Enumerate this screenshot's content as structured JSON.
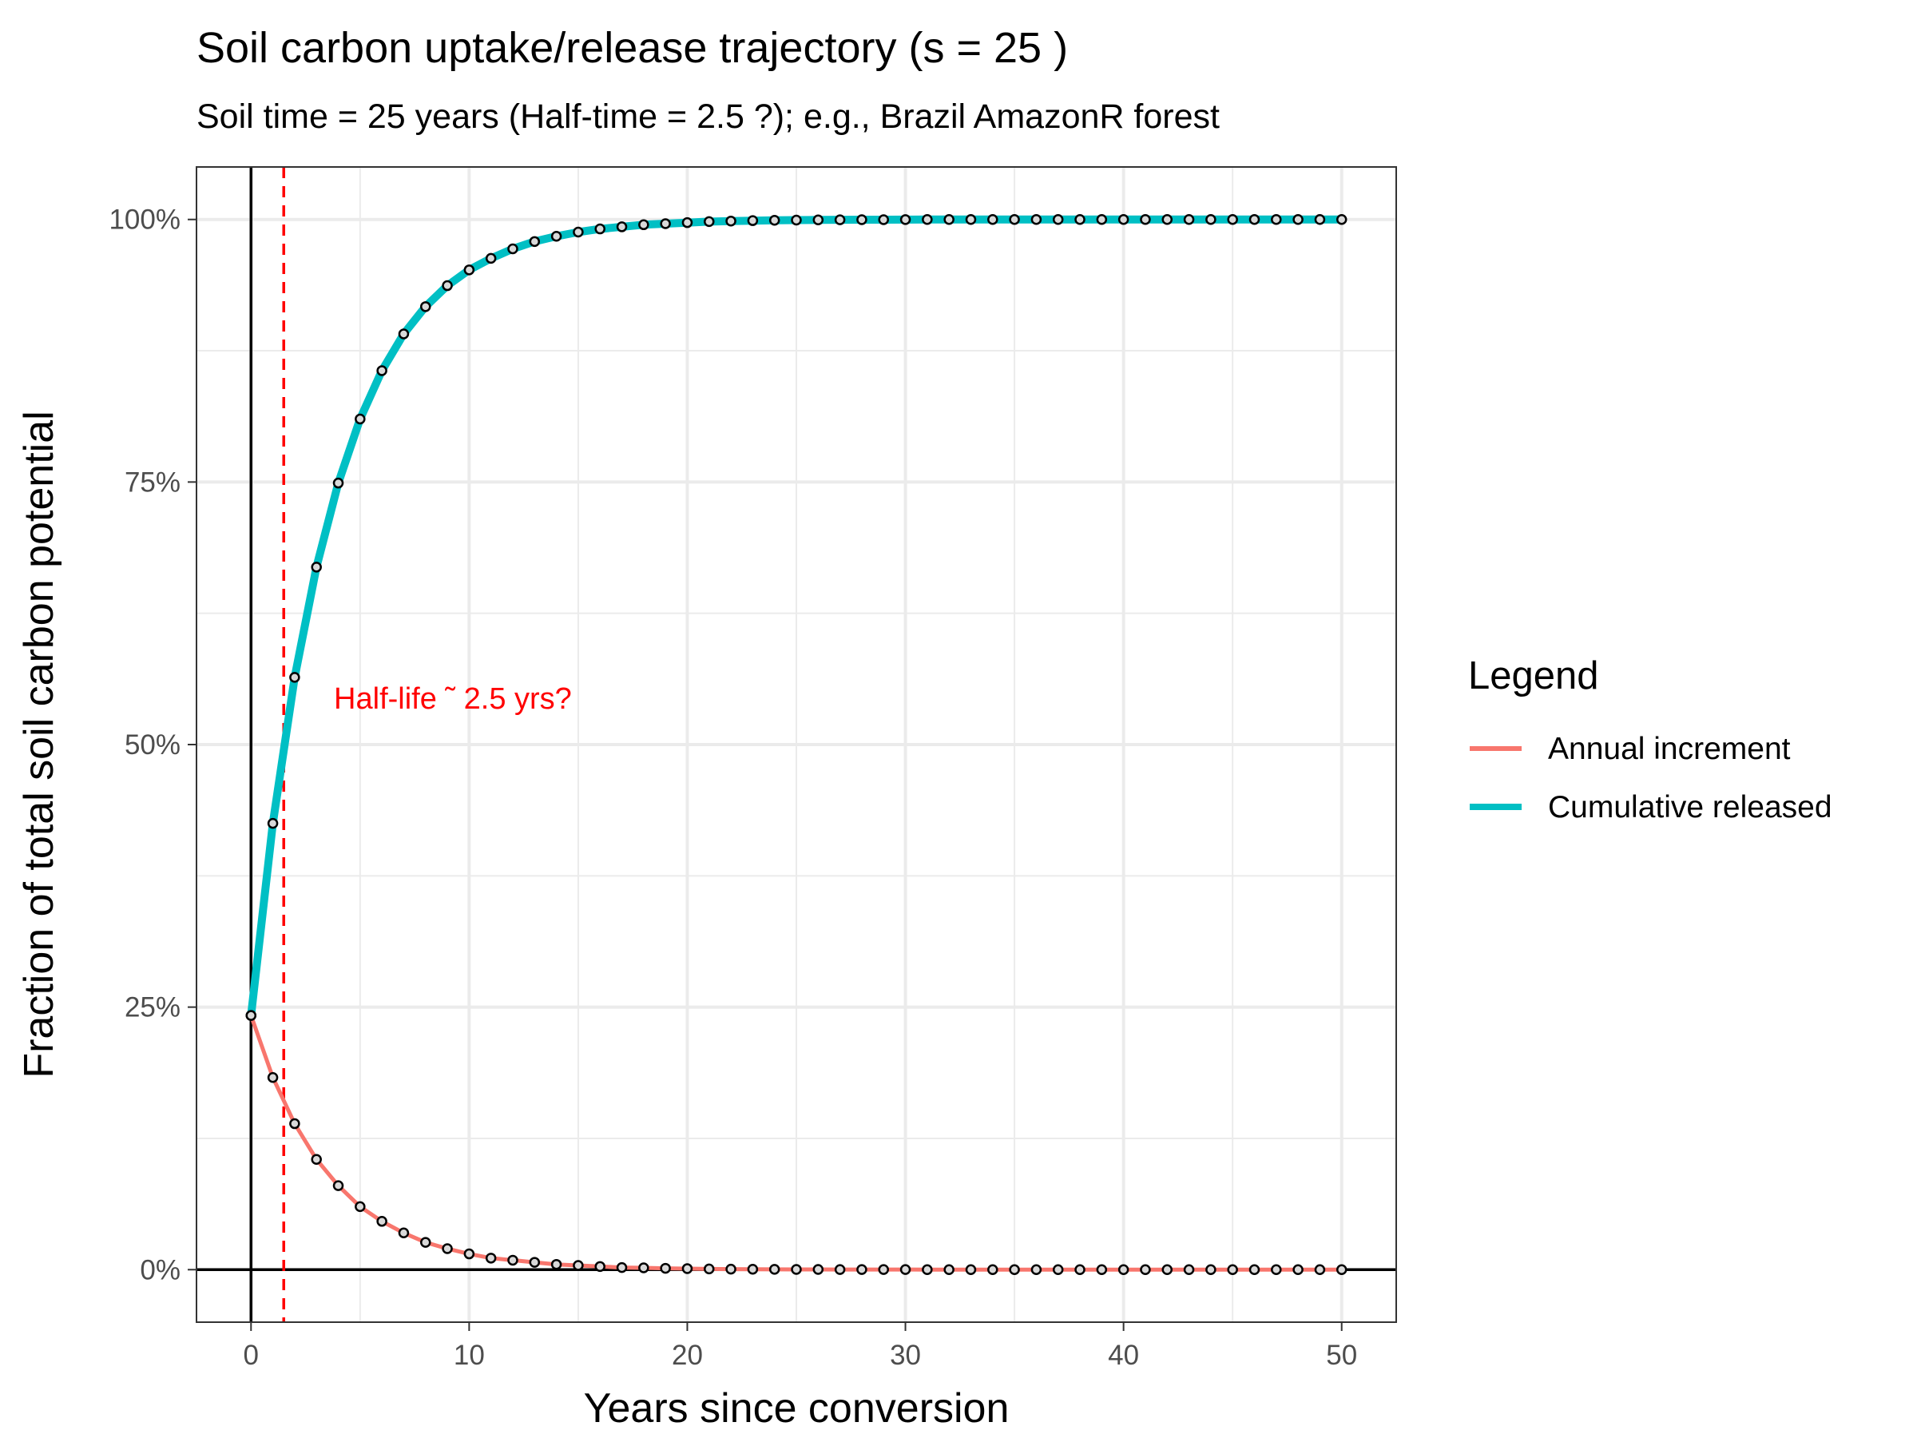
{
  "chart_data": {
    "type": "line",
    "title": "Soil carbon uptake/release trajectory (s = 25 )",
    "subtitle": "Soil time = 25 years (Half-time = 2.5 ?); e.g., Brazil AmazonR forest",
    "xlabel": "Years since conversion",
    "ylabel": "Fraction of total soil carbon potential",
    "xlim": [
      -2.5,
      52.5
    ],
    "ylim": [
      -0.05,
      1.05
    ],
    "x_ticks": [
      0,
      10,
      20,
      30,
      40,
      50
    ],
    "x_tick_labels": [
      "0",
      "10",
      "20",
      "30",
      "40",
      "50"
    ],
    "y_ticks": [
      0,
      0.25,
      0.5,
      0.75,
      1.0
    ],
    "y_tick_labels": [
      "0%",
      "25%",
      "50%",
      "75%",
      "100%"
    ],
    "grid": true,
    "legend": {
      "title": "Legend",
      "position": "right"
    },
    "reference_lines": [
      {
        "orientation": "vertical",
        "x": 0,
        "color": "#000000",
        "style": "solid"
      },
      {
        "orientation": "horizontal",
        "y": 0,
        "color": "#000000",
        "style": "solid"
      },
      {
        "orientation": "vertical",
        "x": 1.5,
        "color": "#FF0000",
        "style": "dashed"
      }
    ],
    "annotations": [
      {
        "text": "Half-life ˜ 2.5 yrs?",
        "x": 3.8,
        "y": 0.545,
        "color": "#FF0000"
      }
    ],
    "x": [
      0,
      1,
      2,
      3,
      4,
      5,
      6,
      7,
      8,
      9,
      10,
      11,
      12,
      13,
      14,
      15,
      16,
      17,
      18,
      19,
      20,
      21,
      22,
      23,
      24,
      25,
      26,
      27,
      28,
      29,
      30,
      31,
      32,
      33,
      34,
      35,
      36,
      37,
      38,
      39,
      40,
      41,
      42,
      43,
      44,
      45,
      46,
      47,
      48,
      49,
      50
    ],
    "series": [
      {
        "name": "Annual increment",
        "color": "#F8766D",
        "values": [
          0.242,
          0.183,
          0.139,
          0.105,
          0.08,
          0.06,
          0.046,
          0.035,
          0.026,
          0.02,
          0.015,
          0.011,
          0.009,
          0.007,
          0.005,
          0.004,
          0.003,
          0.002,
          0.0017,
          0.0013,
          0.001,
          0.0007,
          0.0005,
          0.0004,
          0.0003,
          0.0002,
          0.0002,
          0.0001,
          0.0001,
          0.0001,
          0.0001,
          0,
          0,
          0,
          0,
          0,
          0,
          0,
          0,
          0,
          0,
          0,
          0,
          0,
          0,
          0,
          0,
          0,
          0,
          0,
          0
        ]
      },
      {
        "name": "Cumulative released",
        "color": "#00BFC4",
        "values": [
          0.242,
          0.425,
          0.564,
          0.669,
          0.749,
          0.81,
          0.856,
          0.891,
          0.917,
          0.937,
          0.952,
          0.963,
          0.972,
          0.979,
          0.984,
          0.988,
          0.991,
          0.993,
          0.995,
          0.996,
          0.997,
          0.998,
          0.9985,
          0.9989,
          0.9992,
          0.9994,
          0.9996,
          0.9997,
          0.9998,
          0.9998,
          0.9999,
          1,
          1,
          1,
          1,
          1,
          1,
          1,
          1,
          1,
          1,
          1,
          1,
          1,
          1,
          1,
          1,
          1,
          1,
          1,
          1
        ]
      }
    ]
  }
}
